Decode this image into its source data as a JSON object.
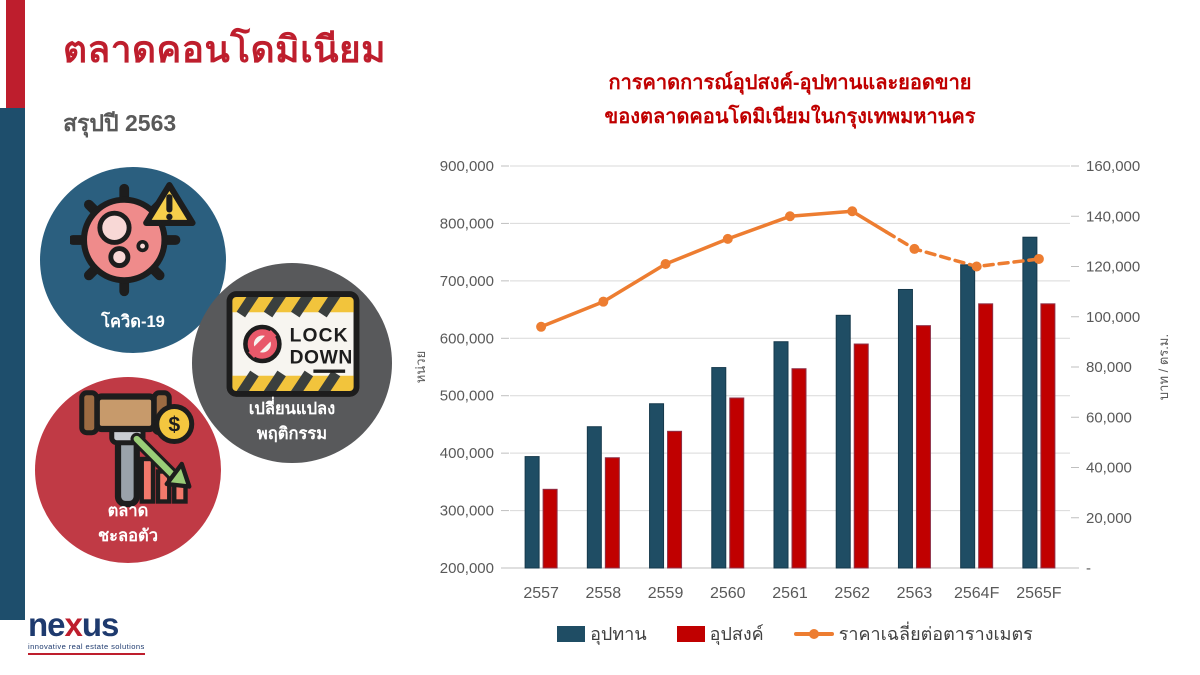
{
  "slide": {
    "title": "ตลาดคอนโดมิเนียม",
    "subtitle": "สรุปปี 2563"
  },
  "factors": [
    {
      "name": "covid",
      "color": "#2B5F7F",
      "lines": [
        "โควิด-19"
      ]
    },
    {
      "name": "lockdown-behavior-change",
      "color": "#58595B",
      "lines": [
        "เปลี่ยนแปลง",
        "พฤติกรรม"
      ]
    },
    {
      "name": "market-slowdown",
      "color": "#C03A45",
      "lines": [
        "ตลาด",
        "ชะลอตัว"
      ]
    }
  ],
  "logo": {
    "part1": "ne",
    "part2": "x",
    "part3": "us",
    "tagline": "innovative real estate solutions"
  },
  "chart_data": {
    "type": "bar",
    "title_lines": [
      "การคาดการณ์อุปสงค์-อุปทานและยอดขาย",
      "ของตลาดคอนโดมิเนียมในกรุงเทพมหานคร"
    ],
    "categories": [
      "2557",
      "2558",
      "2559",
      "2560",
      "2561",
      "2562",
      "2563",
      "2564F",
      "2565F"
    ],
    "series": [
      {
        "name": "อุปทาน",
        "type": "bar",
        "axis": "left",
        "color": "#1F4D64",
        "values": [
          394000,
          446000,
          486000,
          549000,
          594000,
          640000,
          685000,
          728000,
          776000
        ]
      },
      {
        "name": "อุปสงค์",
        "type": "bar",
        "axis": "left",
        "color": "#C00000",
        "values": [
          337000,
          392000,
          438000,
          496000,
          547000,
          590000,
          622000,
          660000,
          660000
        ]
      },
      {
        "name": "ราคาเฉลี่ยต่อตารางเมตร",
        "type": "line",
        "axis": "right",
        "color": "#ED7D31",
        "values": [
          96000,
          106000,
          121000,
          131000,
          140000,
          142000,
          127000,
          120000,
          123000
        ],
        "dash_start_index": 5.55
      }
    ],
    "left_axis": {
      "title": "หน่วย",
      "min": 200000,
      "max": 900000,
      "step": 100000
    },
    "right_axis": {
      "title": "บาท / ตร.ม.",
      "min": 0,
      "max": 160000,
      "step": 20000,
      "zero_label": "-"
    },
    "grid": true,
    "legend_position": "bottom"
  }
}
